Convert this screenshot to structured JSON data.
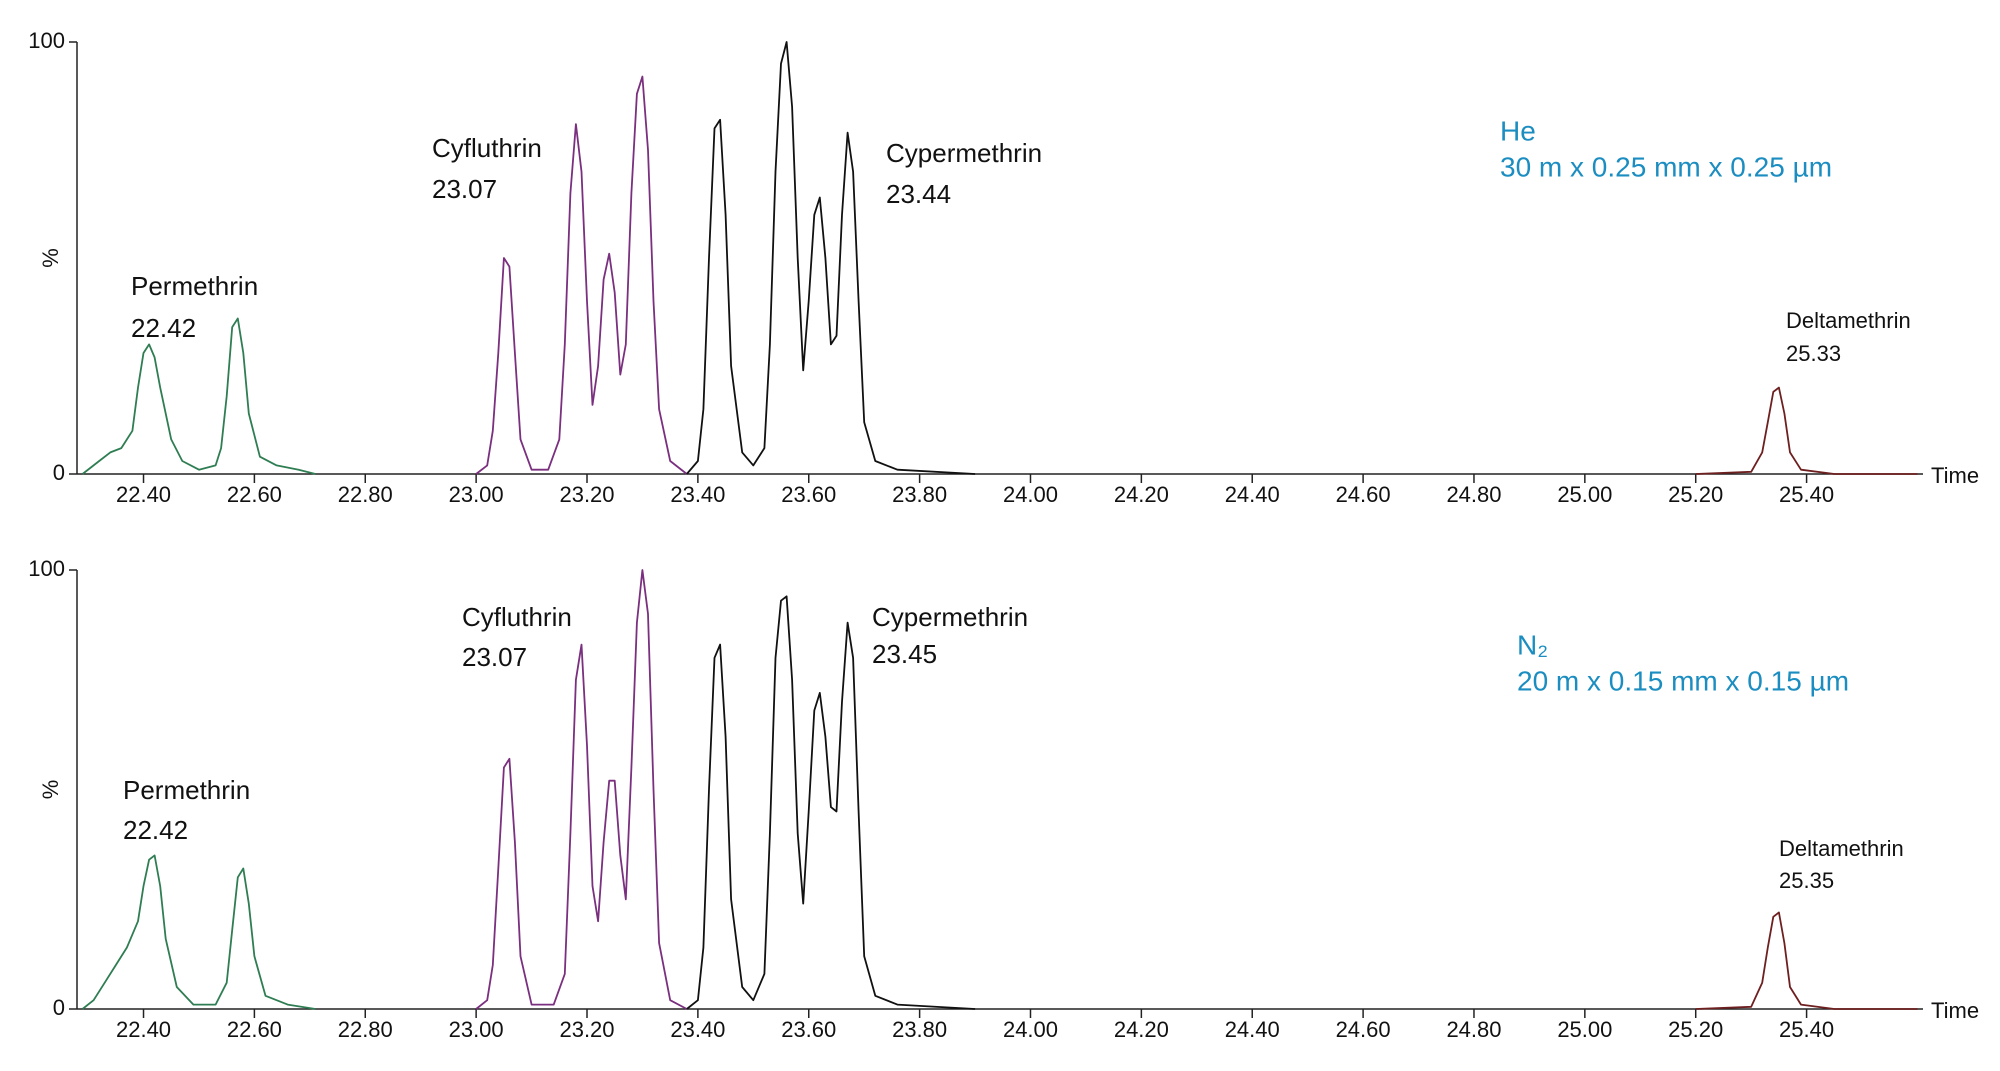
{
  "chart_data": [
    {
      "type": "line",
      "x_label": "Time",
      "y_label": "%",
      "xlim": [
        22.28,
        25.61
      ],
      "ylim": [
        0,
        100
      ],
      "yticks": [
        0,
        100
      ],
      "xticks": [
        {
          "value": 22.4,
          "label": "22.40"
        },
        {
          "value": 22.6,
          "label": "22.60"
        },
        {
          "value": 22.8,
          "label": "22.80"
        },
        {
          "value": 23.0,
          "label": "23.00"
        },
        {
          "value": 23.2,
          "label": "23.20"
        },
        {
          "value": 23.4,
          "label": "23.40"
        },
        {
          "value": 23.6,
          "label": "23.60"
        },
        {
          "value": 23.8,
          "label": "23.80"
        },
        {
          "value": 24.0,
          "label": "24.00"
        },
        {
          "value": 24.2,
          "label": "24.20"
        },
        {
          "value": 24.4,
          "label": "24.40"
        },
        {
          "value": 24.6,
          "label": "24.60"
        },
        {
          "value": 24.8,
          "label": "24.80"
        },
        {
          "value": 25.0,
          "label": "25.00"
        },
        {
          "value": 25.2,
          "label": "25.20"
        },
        {
          "value": 25.4,
          "label": "25.40"
        }
      ],
      "series": [
        {
          "color": "#2f7d52",
          "x": [
            22.29,
            22.32,
            22.34,
            22.36,
            22.38,
            22.39,
            22.4,
            22.41,
            22.42,
            22.43,
            22.45,
            22.47,
            22.5,
            22.53,
            22.54,
            22.55,
            22.56,
            22.57,
            22.58,
            22.59,
            22.61,
            22.64,
            22.68,
            22.71
          ],
          "values": [
            0,
            3,
            5,
            6,
            10,
            20,
            28,
            30,
            27,
            20,
            8,
            3,
            1,
            2,
            6,
            18,
            34,
            36,
            28,
            14,
            4,
            2,
            1,
            0
          ]
        },
        {
          "color": "#7a2f7f",
          "x": [
            23.0,
            23.02,
            23.03,
            23.04,
            23.05,
            23.06,
            23.07,
            23.08,
            23.1,
            23.13,
            23.15,
            23.16,
            23.17,
            23.18,
            23.19,
            23.2,
            23.21,
            23.22,
            23.23,
            23.24,
            23.25,
            23.26,
            23.27,
            23.28,
            23.29,
            23.3,
            23.31,
            23.32,
            23.33,
            23.35,
            23.38
          ],
          "values": [
            0,
            2,
            10,
            28,
            50,
            48,
            28,
            8,
            1,
            1,
            8,
            30,
            65,
            81,
            70,
            40,
            16,
            25,
            45,
            51,
            42,
            23,
            30,
            65,
            88,
            92,
            75,
            40,
            15,
            3,
            0
          ]
        },
        {
          "color": "#111111",
          "x": [
            23.38,
            23.4,
            23.41,
            23.42,
            23.43,
            23.44,
            23.45,
            23.46,
            23.48,
            23.5,
            23.52,
            23.53,
            23.54,
            23.55,
            23.56,
            23.57,
            23.58,
            23.59,
            23.6,
            23.61,
            23.62,
            23.63,
            23.64,
            23.65,
            23.66,
            23.67,
            23.68,
            23.69,
            23.7,
            23.72,
            23.76,
            23.9
          ],
          "values": [
            0,
            3,
            15,
            50,
            80,
            82,
            60,
            25,
            5,
            2,
            6,
            30,
            70,
            95,
            100,
            85,
            50,
            24,
            40,
            60,
            64,
            50,
            30,
            32,
            60,
            79,
            70,
            40,
            12,
            3,
            1,
            0
          ]
        },
        {
          "color": "#6e1f1f",
          "x": [
            25.2,
            25.3,
            25.32,
            25.33,
            25.34,
            25.35,
            25.36,
            25.37,
            25.39,
            25.45,
            25.6
          ],
          "values": [
            0,
            0.5,
            5,
            12,
            19,
            20,
            14,
            5,
            1,
            0,
            0
          ]
        }
      ],
      "annotations": [
        {
          "lines": [
            "Permethrin",
            "22.42"
          ]
        },
        {
          "lines": [
            "Cyfluthrin",
            "23.07"
          ]
        },
        {
          "lines": [
            "Cypermethrin",
            "23.44"
          ]
        },
        {
          "lines": [
            "Deltamethrin",
            "25.33"
          ]
        }
      ],
      "info": {
        "color": "#1b8dc0",
        "lines": [
          "He",
          "30 m  x 0.25 mm x 0.25 µm"
        ]
      }
    },
    {
      "type": "line",
      "x_label": "Time",
      "y_label": "%",
      "xlim": [
        22.28,
        25.61
      ],
      "ylim": [
        0,
        100
      ],
      "yticks": [
        0,
        100
      ],
      "xticks": [
        {
          "value": 22.4,
          "label": "22.40"
        },
        {
          "value": 22.6,
          "label": "22.60"
        },
        {
          "value": 22.8,
          "label": "22.80"
        },
        {
          "value": 23.0,
          "label": "23.00"
        },
        {
          "value": 23.2,
          "label": "23.20"
        },
        {
          "value": 23.4,
          "label": "23.40"
        },
        {
          "value": 23.6,
          "label": "23.60"
        },
        {
          "value": 23.8,
          "label": "23.80"
        },
        {
          "value": 24.0,
          "label": "24.00"
        },
        {
          "value": 24.2,
          "label": "24.20"
        },
        {
          "value": 24.4,
          "label": "24.40"
        },
        {
          "value": 24.6,
          "label": "24.60"
        },
        {
          "value": 24.8,
          "label": "24.80"
        },
        {
          "value": 25.0,
          "label": "25.00"
        },
        {
          "value": 25.2,
          "label": "25.20"
        },
        {
          "value": 25.4,
          "label": "25.40"
        }
      ],
      "series": [
        {
          "color": "#2f7d52",
          "x": [
            22.29,
            22.31,
            22.33,
            22.35,
            22.37,
            22.39,
            22.4,
            22.41,
            22.42,
            22.43,
            22.44,
            22.46,
            22.49,
            22.53,
            22.55,
            22.56,
            22.57,
            22.58,
            22.59,
            22.6,
            22.62,
            22.66,
            22.71
          ],
          "values": [
            0,
            2,
            6,
            10,
            14,
            20,
            28,
            34,
            35,
            28,
            16,
            5,
            1,
            1,
            6,
            18,
            30,
            32,
            24,
            12,
            3,
            1,
            0
          ]
        },
        {
          "color": "#7a2f7f",
          "x": [
            23.0,
            23.02,
            23.03,
            23.04,
            23.05,
            23.06,
            23.07,
            23.08,
            23.1,
            23.14,
            23.16,
            23.17,
            23.18,
            23.19,
            23.2,
            23.21,
            23.22,
            23.23,
            23.24,
            23.25,
            23.26,
            23.27,
            23.28,
            23.29,
            23.3,
            23.31,
            23.32,
            23.33,
            23.35,
            23.38
          ],
          "values": [
            0,
            2,
            10,
            32,
            55,
            57,
            38,
            12,
            1,
            1,
            8,
            40,
            75,
            83,
            60,
            28,
            20,
            38,
            52,
            52,
            35,
            25,
            55,
            88,
            100,
            90,
            50,
            15,
            2,
            0
          ]
        },
        {
          "color": "#111111",
          "x": [
            23.38,
            23.4,
            23.41,
            23.42,
            23.43,
            23.44,
            23.45,
            23.46,
            23.48,
            23.5,
            23.52,
            23.53,
            23.54,
            23.55,
            23.56,
            23.57,
            23.58,
            23.59,
            23.6,
            23.61,
            23.62,
            23.63,
            23.64,
            23.65,
            23.66,
            23.67,
            23.68,
            23.69,
            23.7,
            23.72,
            23.76,
            23.9
          ],
          "values": [
            0,
            2,
            14,
            50,
            80,
            83,
            62,
            25,
            5,
            2,
            8,
            40,
            80,
            93,
            94,
            75,
            40,
            24,
            45,
            68,
            72,
            62,
            46,
            45,
            70,
            88,
            80,
            45,
            12,
            3,
            1,
            0
          ]
        },
        {
          "color": "#6e1f1f",
          "x": [
            25.2,
            25.3,
            25.32,
            25.33,
            25.34,
            25.35,
            25.36,
            25.37,
            25.39,
            25.45,
            25.6
          ],
          "values": [
            0,
            0.5,
            6,
            14,
            21,
            22,
            15,
            5,
            1,
            0,
            0
          ]
        }
      ],
      "annotations": [
        {
          "lines": [
            "Permethrin",
            "22.42"
          ]
        },
        {
          "lines": [
            "Cyfluthrin",
            "23.07"
          ]
        },
        {
          "lines": [
            "Cypermethrin",
            "23.45"
          ]
        },
        {
          "lines": [
            "Deltamethrin",
            "25.35"
          ]
        }
      ],
      "info": {
        "color": "#1b8dc0",
        "lines": [
          "N₂",
          "20 m x 0.15 mm x 0.15 µm"
        ]
      }
    }
  ]
}
